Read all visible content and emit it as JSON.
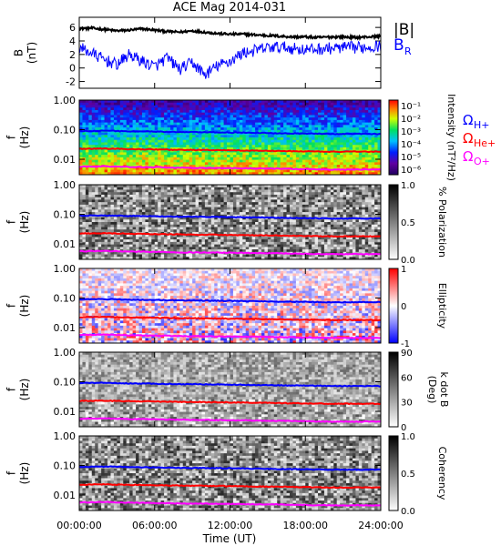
{
  "title": "ACE Mag 2014-031",
  "time_axis": {
    "label": "Time (UT)",
    "ticks": [
      "00:00:00",
      "06:00:00",
      "12:00:00",
      "18:00:00",
      "24:00:00"
    ],
    "range_hours": [
      0,
      24
    ]
  },
  "chart_data": [
    {
      "type": "line",
      "name": "field",
      "ylabel": "B (nT)",
      "ylim": [
        -3,
        7.5
      ],
      "yticks": [
        "-2",
        "0",
        "2",
        "4",
        "6"
      ],
      "legend": [
        {
          "label": "|B|",
          "color": "#000000"
        },
        {
          "label": "B",
          "sub": "R",
          "color": "#0000ff"
        }
      ],
      "series": [
        {
          "name": "|B|",
          "color": "#000000",
          "x": [
            0,
            1,
            2,
            3,
            4,
            5,
            6,
            7,
            8,
            9,
            10,
            11,
            12,
            13,
            14,
            15,
            16,
            17,
            18,
            19,
            20,
            21,
            22,
            23,
            24
          ],
          "y": [
            5.8,
            5.9,
            5.7,
            5.5,
            5.6,
            5.8,
            5.6,
            5.4,
            5.3,
            5.5,
            5.3,
            5.1,
            5.0,
            5.0,
            4.9,
            4.8,
            4.7,
            4.6,
            4.6,
            4.5,
            4.6,
            4.6,
            4.5,
            4.6,
            4.7
          ]
        },
        {
          "name": "B_R",
          "color": "#0000ff",
          "x": [
            0,
            1,
            2,
            3,
            4,
            5,
            6,
            7,
            8,
            9,
            10,
            11,
            12,
            13,
            14,
            15,
            16,
            17,
            18,
            19,
            20,
            21,
            22,
            23,
            24
          ],
          "y": [
            3.0,
            2.2,
            1.2,
            0.5,
            2.0,
            1.0,
            0.2,
            1.5,
            -0.2,
            0.8,
            -1.0,
            0.3,
            1.0,
            2.2,
            2.6,
            3.0,
            3.1,
            2.9,
            2.7,
            2.8,
            2.9,
            3.0,
            3.0,
            3.1,
            3.3
          ]
        }
      ]
    },
    {
      "type": "heatmap",
      "name": "spectral-intensity",
      "ylabel": "f (Hz)",
      "yscale": "log",
      "ylim": [
        0.003,
        1.0
      ],
      "yticks": [
        "0.01",
        "0.10",
        "1.00"
      ],
      "colorbar": {
        "label": "Intensity (nT²/Hz)",
        "ticks": [
          "10⁻¹",
          "10⁻²",
          "10⁻³",
          "10⁻⁴",
          "10⁻⁵",
          "10⁻⁶"
        ],
        "scheme": "rainbow"
      },
      "cyclotron_labels": [
        {
          "label": "Ω",
          "sub": "H+",
          "color": "#0000ff"
        },
        {
          "label": "Ω",
          "sub": "He+",
          "color": "#ff0000"
        },
        {
          "label": "Ω",
          "sub": "O+",
          "color": "#ff00ff"
        }
      ]
    },
    {
      "type": "heatmap",
      "name": "polarization",
      "ylabel": "f (Hz)",
      "yscale": "log",
      "ylim": [
        0.003,
        1.0
      ],
      "yticks": [
        "0.01",
        "0.10",
        "1.00"
      ],
      "colorbar": {
        "label": "% Polarization",
        "ticks": [
          "0.0",
          "0.5",
          "1.0"
        ],
        "scheme": "grayscale"
      }
    },
    {
      "type": "heatmap",
      "name": "ellipticity",
      "ylabel": "f (Hz)",
      "yscale": "log",
      "ylim": [
        0.003,
        1.0
      ],
      "yticks": [
        "0.01",
        "0.10",
        "1.00"
      ],
      "colorbar": {
        "label": "Ellipticity",
        "ticks": [
          "-1",
          "0",
          "1"
        ],
        "scheme": "bwr"
      }
    },
    {
      "type": "heatmap",
      "name": "wave-normal-angle",
      "ylabel": "f (Hz)",
      "yscale": "log",
      "ylim": [
        0.003,
        1.0
      ],
      "yticks": [
        "0.01",
        "0.10",
        "1.00"
      ],
      "colorbar": {
        "label": "k dot B",
        "sublabel": "(Deg)",
        "ticks": [
          "0",
          "30",
          "60",
          "90"
        ],
        "scheme": "grayscale"
      }
    },
    {
      "type": "heatmap",
      "name": "coherency",
      "ylabel": "f (Hz)",
      "yscale": "log",
      "ylim": [
        0.003,
        1.0
      ],
      "yticks": [
        "0.01",
        "0.10",
        "1.00"
      ],
      "colorbar": {
        "label": "Coherency",
        "ticks": [
          "0.0",
          "0.5",
          "1.0"
        ],
        "scheme": "grayscale"
      }
    }
  ],
  "cyclotron_frequencies": {
    "x": [
      0,
      2,
      4,
      6,
      8,
      10,
      12,
      14,
      16,
      18,
      20,
      22,
      24
    ],
    "H+": [
      0.09,
      0.092,
      0.088,
      0.086,
      0.083,
      0.082,
      0.08,
      0.078,
      0.076,
      0.074,
      0.072,
      0.072,
      0.072
    ],
    "He+": [
      0.0225,
      0.023,
      0.022,
      0.0215,
      0.0208,
      0.0205,
      0.02,
      0.0195,
      0.019,
      0.0185,
      0.018,
      0.018,
      0.018
    ],
    "O+": [
      0.0056,
      0.0058,
      0.0055,
      0.0054,
      0.0052,
      0.0051,
      0.005,
      0.0049,
      0.0048,
      0.0046,
      0.0045,
      0.0045,
      0.0045
    ]
  },
  "colors": {
    "H+": "#0000ff",
    "He+": "#ff0000",
    "O+": "#ff00ff"
  }
}
